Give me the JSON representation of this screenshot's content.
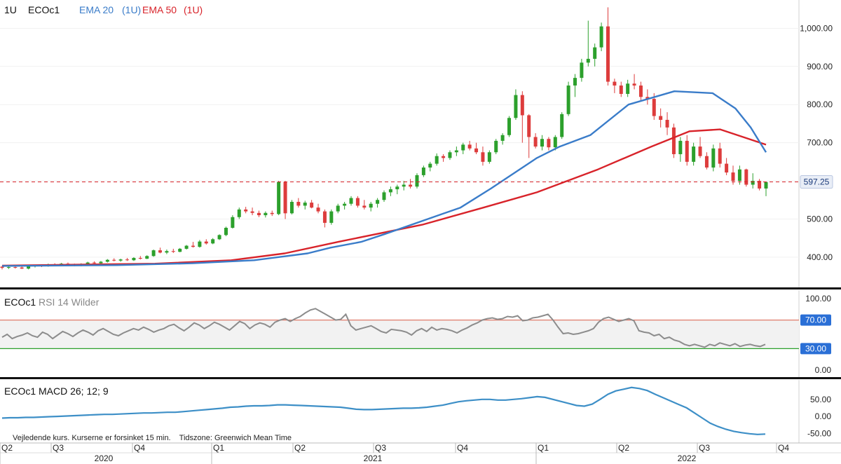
{
  "header": {
    "interval": "1U",
    "symbol": "ECOc1",
    "ema20_label": "EMA 20",
    "ema20_interval": "(1U)",
    "ema50_label": "EMA 50",
    "ema50_interval": "(1U)"
  },
  "rsi_panel": {
    "symbol": "ECOc1",
    "label": "RSI 14 Wilder"
  },
  "macd_panel": {
    "symbol": "ECOc1",
    "label": "MACD 26; 12; 9"
  },
  "footer_note": "Vejledende kurs. Kurserne er forsinket 15 min.    Tidszone: Greenwich Mean Time",
  "colors": {
    "up": "#2ca02c",
    "down": "#dd3c3c",
    "ema20": "#3a7cc9",
    "ema50": "#d8232a",
    "rsi": "#8c8c8c",
    "macd": "#3d8fc7",
    "badge": "#2a6fd6",
    "last_price_line": "#d8232a"
  },
  "chart_data": [
    {
      "type": "candlestick",
      "title": "ECOc1",
      "y_axis_ticks": [
        "400.00",
        "500.00",
        "600.00",
        "700.00",
        "800.00",
        "900.00",
        "1,000.00"
      ],
      "ylim": [
        330,
        1065
      ],
      "last_price": 597.25,
      "last_price_label": "597.25",
      "x_quarter_labels": [
        "Q2",
        "Q3",
        "Q4",
        "Q1",
        "Q2",
        "Q3",
        "Q4",
        "Q1",
        "Q2",
        "Q3",
        "Q4"
      ],
      "x_year_labels": [
        "2020",
        "2021",
        "2022"
      ],
      "candles_ohlc": [
        [
          375,
          377,
          368,
          372
        ],
        [
          372,
          376,
          369,
          374
        ],
        [
          374,
          377,
          370,
          373
        ],
        [
          373,
          376,
          369,
          370
        ],
        [
          370,
          377,
          368,
          376
        ],
        [
          376,
          380,
          373,
          378
        ],
        [
          378,
          381,
          374,
          376
        ],
        [
          376,
          383,
          375,
          381
        ],
        [
          381,
          384,
          377,
          379
        ],
        [
          379,
          385,
          377,
          383
        ],
        [
          383,
          386,
          379,
          380
        ],
        [
          380,
          383,
          376,
          378
        ],
        [
          378,
          384,
          376,
          382
        ],
        [
          382,
          388,
          380,
          386
        ],
        [
          386,
          389,
          382,
          384
        ],
        [
          384,
          390,
          383,
          388
        ],
        [
          388,
          395,
          386,
          393
        ],
        [
          393,
          397,
          389,
          391
        ],
        [
          391,
          396,
          388,
          394
        ],
        [
          394,
          398,
          390,
          392
        ],
        [
          392,
          400,
          390,
          398
        ],
        [
          398,
          403,
          394,
          396
        ],
        [
          396,
          405,
          395,
          403
        ],
        [
          403,
          420,
          401,
          418
        ],
        [
          418,
          425,
          410,
          412
        ],
        [
          412,
          420,
          408,
          416
        ],
        [
          416,
          422,
          411,
          414
        ],
        [
          414,
          424,
          413,
          422
        ],
        [
          422,
          432,
          420,
          430
        ],
        [
          430,
          440,
          425,
          427
        ],
        [
          427,
          445,
          425,
          441
        ],
        [
          441,
          447,
          433,
          436
        ],
        [
          436,
          450,
          434,
          447
        ],
        [
          447,
          460,
          445,
          458
        ],
        [
          458,
          480,
          455,
          477
        ],
        [
          477,
          510,
          475,
          505
        ],
        [
          505,
          530,
          500,
          525
        ],
        [
          525,
          532,
          515,
          520
        ],
        [
          520,
          530,
          510,
          516
        ],
        [
          516,
          522,
          505,
          510
        ],
        [
          510,
          520,
          504,
          516
        ],
        [
          516,
          522,
          508,
          513
        ],
        [
          513,
          600,
          510,
          597
        ],
        [
          597,
          600,
          500,
          515
        ],
        [
          515,
          550,
          512,
          545
        ],
        [
          545,
          555,
          530,
          535
        ],
        [
          535,
          548,
          525,
          543
        ],
        [
          543,
          550,
          528,
          530
        ],
        [
          530,
          540,
          515,
          520
        ],
        [
          520,
          525,
          478,
          490
        ],
        [
          490,
          525,
          485,
          520
        ],
        [
          520,
          540,
          515,
          535
        ],
        [
          535,
          545,
          525,
          540
        ],
        [
          540,
          560,
          535,
          555
        ],
        [
          555,
          560,
          530,
          535
        ],
        [
          535,
          550,
          525,
          530
        ],
        [
          530,
          545,
          520,
          540
        ],
        [
          540,
          555,
          530,
          550
        ],
        [
          550,
          575,
          545,
          570
        ],
        [
          570,
          585,
          560,
          578
        ],
        [
          578,
          590,
          565,
          585
        ],
        [
          585,
          600,
          575,
          590
        ],
        [
          590,
          605,
          580,
          585
        ],
        [
          585,
          620,
          580,
          615
        ],
        [
          615,
          640,
          610,
          635
        ],
        [
          635,
          650,
          625,
          645
        ],
        [
          645,
          672,
          640,
          665
        ],
        [
          665,
          670,
          650,
          660
        ],
        [
          660,
          680,
          655,
          675
        ],
        [
          675,
          690,
          665,
          680
        ],
        [
          680,
          700,
          670,
          695
        ],
        [
          695,
          705,
          680,
          685
        ],
        [
          685,
          700,
          670,
          675
        ],
        [
          675,
          690,
          640,
          650
        ],
        [
          650,
          680,
          645,
          675
        ],
        [
          675,
          710,
          670,
          705
        ],
        [
          705,
          725,
          695,
          720
        ],
        [
          720,
          770,
          715,
          765
        ],
        [
          765,
          840,
          760,
          825
        ],
        [
          825,
          835,
          700,
          772
        ],
        [
          772,
          775,
          660,
          715
        ],
        [
          715,
          725,
          685,
          690
        ],
        [
          690,
          720,
          680,
          710
        ],
        [
          710,
          715,
          680,
          688
        ],
        [
          688,
          720,
          680,
          715
        ],
        [
          715,
          780,
          710,
          775
        ],
        [
          775,
          860,
          770,
          850
        ],
        [
          850,
          880,
          820,
          870
        ],
        [
          870,
          920,
          860,
          910
        ],
        [
          910,
          1020,
          900,
          920
        ],
        [
          920,
          960,
          900,
          950
        ],
        [
          950,
          1015,
          940,
          1005
        ],
        [
          1005,
          1055,
          850,
          860
        ],
        [
          860,
          868,
          830,
          850
        ],
        [
          850,
          860,
          820,
          828
        ],
        [
          828,
          865,
          820,
          855
        ],
        [
          855,
          880,
          840,
          850
        ],
        [
          850,
          860,
          810,
          820
        ],
        [
          820,
          840,
          800,
          815
        ],
        [
          815,
          830,
          760,
          770
        ],
        [
          770,
          790,
          740,
          760
        ],
        [
          760,
          780,
          720,
          740
        ],
        [
          740,
          750,
          660,
          670
        ],
        [
          670,
          715,
          650,
          705
        ],
        [
          705,
          720,
          640,
          650
        ],
        [
          650,
          700,
          640,
          690
        ],
        [
          690,
          715,
          660,
          665
        ],
        [
          665,
          675,
          630,
          635
        ],
        [
          635,
          695,
          625,
          685
        ],
        [
          685,
          700,
          635,
          645
        ],
        [
          645,
          660,
          615,
          622
        ],
        [
          622,
          640,
          590,
          600
        ],
        [
          600,
          640,
          590,
          630
        ],
        [
          630,
          632,
          585,
          590
        ],
        [
          590,
          620,
          580,
          600
        ],
        [
          600,
          605,
          575,
          580
        ],
        [
          580,
          598,
          560,
          597
        ]
      ],
      "ema20_series": [
        [
          0,
          377
        ],
        [
          0.15,
          379
        ],
        [
          0.25,
          384
        ],
        [
          0.33,
          392
        ],
        [
          0.4,
          410
        ],
        [
          0.43,
          425
        ],
        [
          0.47,
          440
        ],
        [
          0.5,
          460
        ],
        [
          0.55,
          495
        ],
        [
          0.6,
          530
        ],
        [
          0.64,
          580
        ],
        [
          0.7,
          660
        ],
        [
          0.73,
          690
        ],
        [
          0.77,
          720
        ],
        [
          0.82,
          800
        ],
        [
          0.88,
          835
        ],
        [
          0.93,
          830
        ],
        [
          0.96,
          790
        ],
        [
          0.98,
          740
        ],
        [
          1.0,
          675
        ]
      ],
      "ema50_series": [
        [
          0,
          378
        ],
        [
          0.2,
          383
        ],
        [
          0.3,
          392
        ],
        [
          0.37,
          410
        ],
        [
          0.44,
          440
        ],
        [
          0.55,
          485
        ],
        [
          0.63,
          530
        ],
        [
          0.7,
          570
        ],
        [
          0.78,
          630
        ],
        [
          0.85,
          690
        ],
        [
          0.9,
          730
        ],
        [
          0.94,
          735
        ],
        [
          0.97,
          715
        ],
        [
          1.0,
          695
        ]
      ]
    },
    {
      "type": "line",
      "title": "RSI 14 Wilder",
      "y_axis_ticks": [
        "0.00",
        "30.00",
        "70.00",
        "100.00"
      ],
      "ylim": [
        0,
        100
      ],
      "overbought": 70,
      "oversold": 30,
      "overbought_label": "70.00",
      "oversold_label": "30.00",
      "values": [
        46,
        50,
        44,
        47,
        49,
        52,
        48,
        46,
        53,
        50,
        44,
        49,
        54,
        51,
        47,
        52,
        56,
        53,
        49,
        55,
        58,
        54,
        50,
        48,
        52,
        55,
        58,
        56,
        60,
        57,
        53,
        56,
        58,
        62,
        64,
        59,
        55,
        60,
        66,
        63,
        58,
        62,
        67,
        64,
        60,
        56,
        62,
        68,
        65,
        58,
        63,
        66,
        64,
        60,
        67,
        70,
        72,
        68,
        72,
        75,
        80,
        84,
        86,
        82,
        78,
        74,
        70,
        71,
        78,
        62,
        56,
        58,
        60,
        62,
        58,
        54,
        52,
        57,
        56,
        55,
        53,
        49,
        55,
        58,
        54,
        60,
        56,
        58,
        57,
        55,
        52,
        56,
        59,
        63,
        66,
        70,
        72,
        73,
        71,
        72,
        75,
        74,
        76,
        69,
        70,
        73,
        74,
        76,
        78,
        70,
        60,
        51,
        52,
        50,
        51,
        53,
        55,
        58,
        67,
        72,
        74,
        71,
        68,
        70,
        72,
        69,
        55,
        53,
        52,
        48,
        50,
        44,
        46,
        42,
        40,
        36,
        34,
        36,
        34,
        32,
        36,
        34,
        38,
        36,
        34,
        37,
        33,
        35,
        36,
        34,
        33,
        36
      ]
    },
    {
      "type": "line",
      "title": "MACD 26; 12; 9",
      "y_axis_ticks": [
        "-50.00",
        "0.00",
        "50.00"
      ],
      "ylim": [
        -70,
        95
      ],
      "values": [
        -5,
        -4,
        -4,
        -3,
        -3,
        -2,
        -1,
        0,
        1,
        2,
        3,
        4,
        5,
        6,
        6,
        7,
        8,
        9,
        10,
        10,
        11,
        12,
        12,
        14,
        16,
        18,
        20,
        22,
        24,
        27,
        28,
        30,
        31,
        31,
        32,
        34,
        34,
        33,
        32,
        31,
        30,
        29,
        28,
        27,
        24,
        21,
        20,
        20,
        21,
        22,
        23,
        24,
        24,
        25,
        27,
        30,
        33,
        38,
        43,
        46,
        48,
        50,
        50,
        48,
        48,
        50,
        52,
        55,
        58,
        56,
        50,
        44,
        38,
        32,
        30,
        36,
        50,
        65,
        75,
        80,
        85,
        82,
        76,
        65,
        55,
        45,
        35,
        25,
        10,
        -5,
        -20,
        -30,
        -38,
        -44,
        -48,
        -51,
        -53,
        -52
      ]
    }
  ]
}
